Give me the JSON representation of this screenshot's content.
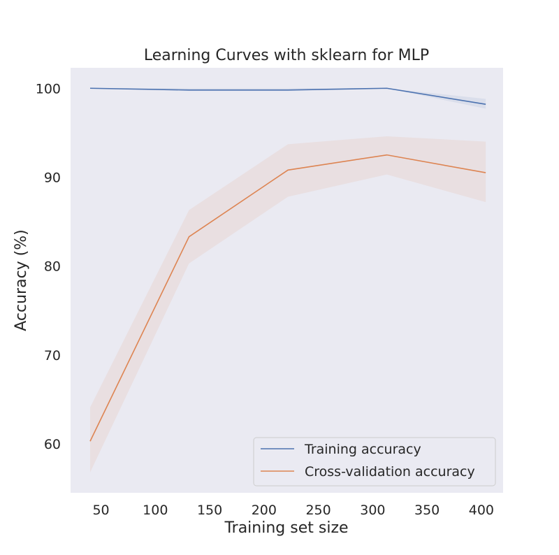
{
  "chart_data": {
    "type": "line",
    "title": "Learning Curves with sklearn for MLP",
    "xlabel": "Training set size",
    "ylabel": "Accuracy (%)",
    "xlim": [
      22,
      420
    ],
    "ylim": [
      54.5,
      102.3
    ],
    "xticks": [
      50,
      100,
      150,
      200,
      250,
      300,
      350,
      400
    ],
    "yticks": [
      60,
      70,
      80,
      90,
      100
    ],
    "grid": false,
    "legend": "lower-right",
    "series": [
      {
        "name": "Training accuracy",
        "color": "#4c72b0",
        "x": [
          40,
          131,
          222,
          313,
          404
        ],
        "y": [
          100.0,
          99.8,
          99.8,
          100.0,
          98.2
        ],
        "band_low": [
          100.0,
          99.7,
          99.7,
          100.0,
          97.7
        ],
        "band_high": [
          100.0,
          100.0,
          100.0,
          100.0,
          98.8
        ]
      },
      {
        "name": "Cross-validation accuracy",
        "color": "#dd8452",
        "x": [
          40,
          131,
          222,
          313,
          404
        ],
        "y": [
          60.3,
          83.3,
          90.8,
          92.5,
          90.5
        ],
        "band_low": [
          56.8,
          80.3,
          87.8,
          90.3,
          87.2
        ],
        "band_high": [
          64.1,
          86.3,
          93.7,
          94.6,
          94.0
        ]
      }
    ]
  }
}
